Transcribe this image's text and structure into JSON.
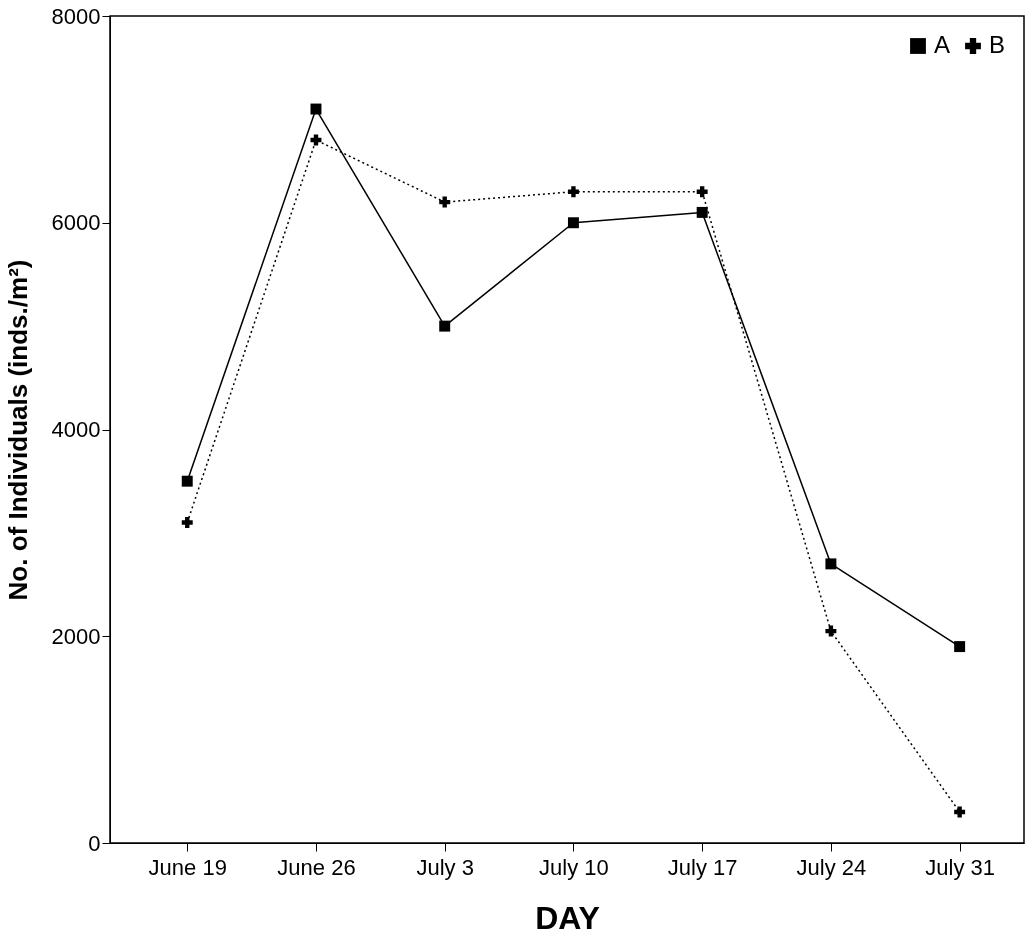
{
  "chart_data": {
    "type": "line",
    "xlabel": "DAY",
    "ylabel": "No. of Individuals (inds./m²)",
    "categories": [
      "June 19",
      "June 26",
      "July 3",
      "July 10",
      "July 17",
      "July 24",
      "July 31"
    ],
    "series": [
      {
        "name": "A",
        "color": "#000000",
        "marker": "square",
        "line_style": "solid",
        "values": [
          3500,
          7100,
          5000,
          6000,
          6100,
          2700,
          1900
        ]
      },
      {
        "name": "B",
        "color": "#000000",
        "marker": "cross",
        "line_style": "dotted",
        "values": [
          3100,
          6800,
          6200,
          6300,
          6300,
          2050,
          300
        ]
      }
    ],
    "ylim": [
      0,
      8000
    ],
    "yticks": [
      0,
      2000,
      4000,
      6000,
      8000
    ],
    "grid": false,
    "legend": "top right"
  }
}
